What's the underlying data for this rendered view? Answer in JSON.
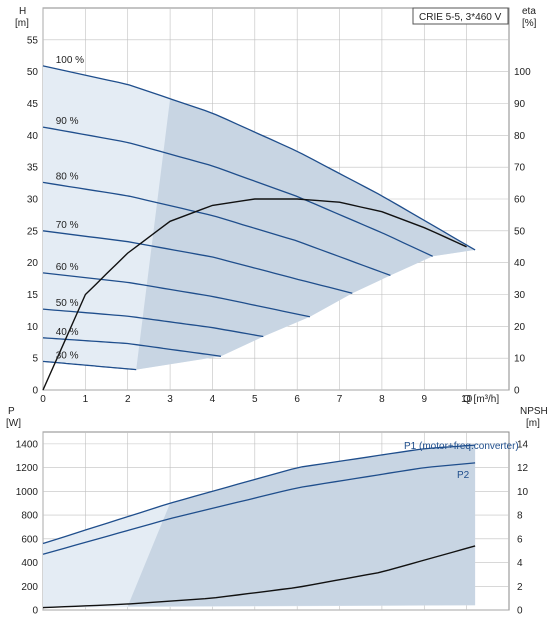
{
  "chart_data": [
    {
      "type": "line",
      "model_label": "CRIE 5-5, 3*460 V",
      "xlabel": "Q [m³/h]",
      "ylabel_left": "H",
      "ylabel_left_unit": "[m]",
      "ylabel_right": "eta",
      "ylabel_right_unit": "[%]",
      "xlim": [
        0,
        11
      ],
      "ylim_left": [
        0,
        60
      ],
      "ylim_right": [
        0,
        120
      ],
      "x_ticks": [
        "0",
        "1",
        "2",
        "3",
        "4",
        "5",
        "6",
        "7",
        "8",
        "9",
        "10"
      ],
      "y_ticks_left": [
        "0",
        "5",
        "10",
        "15",
        "20",
        "25",
        "30",
        "35",
        "40",
        "45",
        "50",
        "55"
      ],
      "y_ticks_right": [
        "0",
        "10",
        "20",
        "30",
        "40",
        "50",
        "60",
        "70",
        "80",
        "90",
        "100"
      ],
      "grid": true,
      "colors": {
        "curve": "#1f4e8c",
        "eff": "#111111",
        "region": "#c8d5e3",
        "region_light": "#e4ecf4",
        "grid": "#c0c0c0"
      },
      "speed_series": [
        {
          "name": "100 %",
          "x": [
            0,
            2,
            4,
            6,
            8,
            10.2
          ],
          "y": [
            50.9,
            48.0,
            43.5,
            37.5,
            30.5,
            22.0
          ]
        },
        {
          "name": "90 %",
          "x": [
            0,
            2,
            4,
            6,
            8,
            9.2
          ],
          "y": [
            41.3,
            38.9,
            35.2,
            30.4,
            24.7,
            21.0
          ]
        },
        {
          "name": "80 %",
          "x": [
            0,
            2,
            4,
            6,
            8.2
          ],
          "y": [
            32.6,
            30.5,
            27.4,
            23.4,
            18.0
          ]
        },
        {
          "name": "70 %",
          "x": [
            0,
            2,
            4,
            6,
            7.3
          ],
          "y": [
            25.0,
            23.3,
            20.9,
            17.4,
            15.2
          ]
        },
        {
          "name": "60 %",
          "x": [
            0,
            2,
            4,
            6.3
          ],
          "y": [
            18.4,
            16.9,
            14.7,
            11.5
          ]
        },
        {
          "name": "50 %",
          "x": [
            0,
            2,
            4,
            5.2
          ],
          "y": [
            12.7,
            11.6,
            9.8,
            8.4
          ]
        },
        {
          "name": "40 %",
          "x": [
            0,
            2,
            4.2
          ],
          "y": [
            8.2,
            7.3,
            5.3
          ]
        },
        {
          "name": "30 %",
          "x": [
            0,
            1,
            2.2
          ],
          "y": [
            4.5,
            3.9,
            3.2
          ]
        }
      ],
      "efficiency_series": [
        {
          "name": "",
          "x": [
            0,
            1,
            2,
            3,
            4,
            5,
            6,
            7,
            8,
            9,
            10
          ],
          "y": [
            0,
            30,
            43,
            53,
            58,
            60,
            60,
            59,
            56,
            51,
            45
          ]
        }
      ]
    },
    {
      "type": "line",
      "xlabel": "",
      "ylabel_left": "P",
      "ylabel_left_unit": "[W]",
      "ylabel_right": "NPSH",
      "ylabel_right_unit": "[m]",
      "xlim": [
        0,
        11
      ],
      "ylim_left": [
        0,
        1500
      ],
      "ylim_right": [
        0,
        15
      ],
      "y_ticks_left": [
        "0",
        "200",
        "400",
        "600",
        "800",
        "1000",
        "1200",
        "1400"
      ],
      "y_ticks_right": [
        "0",
        "2",
        "4",
        "6",
        "8",
        "10",
        "12",
        "14"
      ],
      "grid": true,
      "power_series": [
        {
          "name": "P1 (motor+freq.converter)",
          "x": [
            0,
            3,
            6,
            9,
            10.2
          ],
          "y": [
            560,
            900,
            1200,
            1360,
            1390
          ]
        },
        {
          "name": "P2",
          "x": [
            0,
            3,
            6,
            9,
            10.2
          ],
          "y": [
            470,
            770,
            1030,
            1200,
            1240
          ]
        }
      ],
      "npsh_series": [
        {
          "name": "",
          "x": [
            0,
            2,
            4,
            6,
            8,
            10.2
          ],
          "y": [
            0.2,
            0.5,
            1.0,
            1.9,
            3.2,
            5.4
          ]
        }
      ]
    }
  ]
}
